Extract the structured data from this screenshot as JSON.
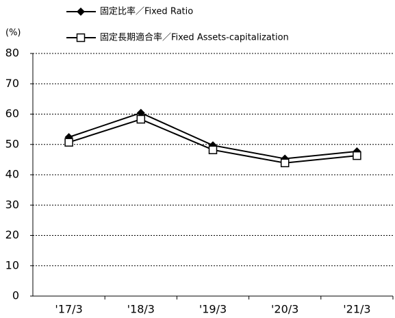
{
  "chart_data": {
    "type": "line",
    "y_label": "(%)",
    "categories": [
      "'17/3",
      "'18/3",
      "'19/3",
      "'20/3",
      "'21/3"
    ],
    "series": [
      {
        "name": "固定比率／Fixed Ratio",
        "color": "#000000",
        "marker": "diamond",
        "values": [
          52.4,
          60.4,
          49.7,
          45.3,
          47.7
        ]
      },
      {
        "name": "固定長期適合率／Fixed Assets-capitalization",
        "color": "#000000",
        "marker": "square",
        "values": [
          50.7,
          58.3,
          48.2,
          43.9,
          46.3
        ]
      }
    ],
    "ylim": [
      0,
      80
    ],
    "yticks": [
      0,
      10,
      20,
      30,
      40,
      50,
      60,
      70,
      80
    ],
    "grid": true
  }
}
